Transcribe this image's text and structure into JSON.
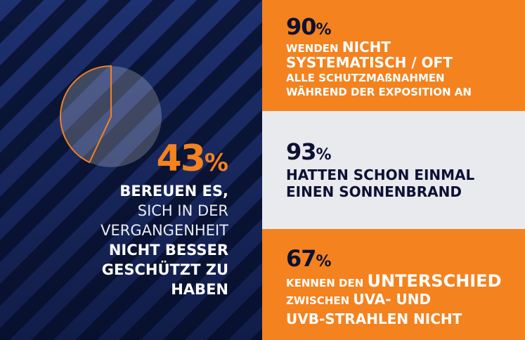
{
  "colors": {
    "orange": "#f4821f",
    "navy": "#0d1133",
    "stripe_light": "#1e3170",
    "stripe_dark": "#0b1638",
    "grey": "#e9eaee"
  },
  "left_stat": {
    "value": "43",
    "pct_sign": "%",
    "pie_fraction": 0.43,
    "line1": "BEREUEN ES,",
    "line2": "SICH IN DER",
    "line3": "VERGANGENHEIT",
    "line4": "NICHT BESSER",
    "line5": "GESCHÜTZT ZU",
    "line6": "HABEN"
  },
  "stat1": {
    "value": "90",
    "pct_sign": "%",
    "line1_small": "WENDEN ",
    "line1_big": "NICHT",
    "line2": "SYSTEMATISCH / OFT",
    "line3": "ALLE SCHUTZMAßNAHMEN",
    "line4": "WÄHREND DER EXPOSITION AN"
  },
  "stat2": {
    "value": "93",
    "pct_sign": "%",
    "line1": "HATTEN SCHON EINMAL",
    "line2": "EINEN SONNENBRAND"
  },
  "stat3": {
    "value": "67",
    "pct_sign": "%",
    "line1_small": "KENNEN DEN ",
    "line1_big": "UNTERSCHIED",
    "line2_small": "ZWISCHEN ",
    "line2_big": "UVA- UND",
    "line3": "UVB-STRAHLEN NICHT"
  }
}
